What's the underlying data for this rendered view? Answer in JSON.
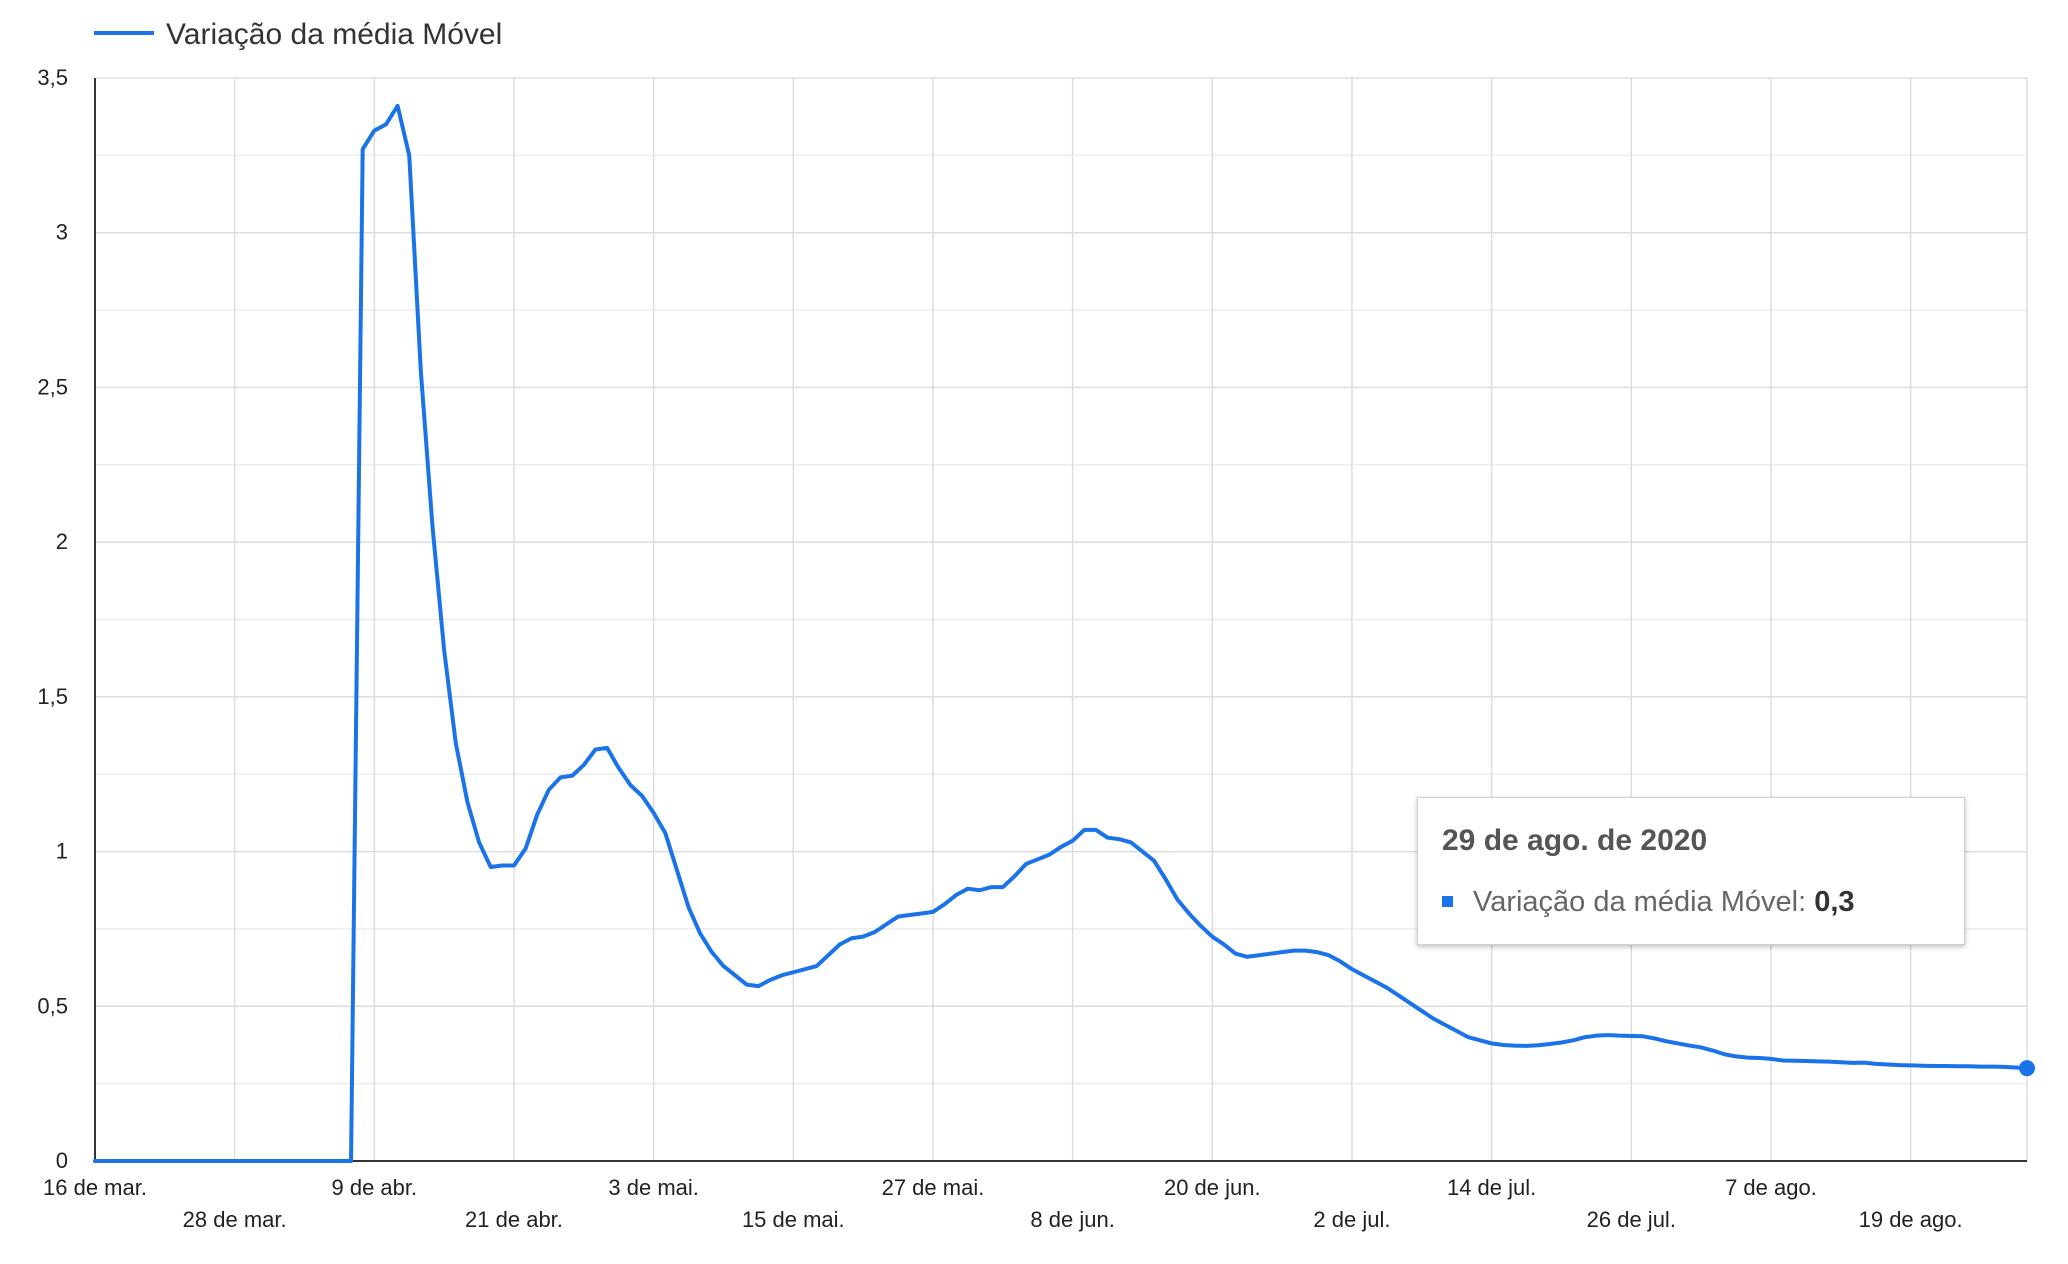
{
  "chart_data": {
    "type": "line",
    "legend": {
      "position": "top-left",
      "label": "Variação da média Móvel"
    },
    "series": [
      {
        "name": "Variação da média Móvel",
        "color": "#1a73e8",
        "points": [
          [
            "2020-03-16",
            0
          ],
          [
            "2020-04-02",
            0
          ],
          [
            "2020-04-03",
            0
          ],
          [
            "2020-04-04",
            0
          ],
          [
            "2020-04-05",
            0
          ],
          [
            "2020-04-06",
            0
          ],
          [
            "2020-04-07",
            0
          ],
          [
            "2020-04-08",
            3.27
          ],
          [
            "2020-04-09",
            3.33
          ],
          [
            "2020-04-10",
            3.35
          ],
          [
            "2020-04-11",
            3.41
          ],
          [
            "2020-04-12",
            3.25
          ],
          [
            "2020-04-13",
            2.55
          ],
          [
            "2020-04-14",
            2.05
          ],
          [
            "2020-04-15",
            1.65
          ],
          [
            "2020-04-16",
            1.35
          ],
          [
            "2020-04-17",
            1.16
          ],
          [
            "2020-04-18",
            1.03
          ],
          [
            "2020-04-19",
            0.95
          ],
          [
            "2020-04-20",
            0.955
          ],
          [
            "2020-04-21",
            0.955
          ],
          [
            "2020-04-22",
            1.01
          ],
          [
            "2020-04-23",
            1.12
          ],
          [
            "2020-04-24",
            1.2
          ],
          [
            "2020-04-25",
            1.24
          ],
          [
            "2020-04-26",
            1.245
          ],
          [
            "2020-04-27",
            1.28
          ],
          [
            "2020-04-28",
            1.33
          ],
          [
            "2020-04-29",
            1.335
          ],
          [
            "2020-04-30",
            1.27
          ],
          [
            "2020-05-01",
            1.215
          ],
          [
            "2020-05-02",
            1.18
          ],
          [
            "2020-05-03",
            1.125
          ],
          [
            "2020-05-04",
            1.06
          ],
          [
            "2020-05-05",
            0.94
          ],
          [
            "2020-05-06",
            0.82
          ],
          [
            "2020-05-07",
            0.735
          ],
          [
            "2020-05-08",
            0.675
          ],
          [
            "2020-05-09",
            0.63
          ],
          [
            "2020-05-10",
            0.6
          ],
          [
            "2020-05-11",
            0.57
          ],
          [
            "2020-05-12",
            0.565
          ],
          [
            "2020-05-13",
            0.585
          ],
          [
            "2020-05-14",
            0.6
          ],
          [
            "2020-05-15",
            0.61
          ],
          [
            "2020-05-16",
            0.62
          ],
          [
            "2020-05-17",
            0.63
          ],
          [
            "2020-05-18",
            0.665
          ],
          [
            "2020-05-19",
            0.7
          ],
          [
            "2020-05-20",
            0.72
          ],
          [
            "2020-05-21",
            0.725
          ],
          [
            "2020-05-22",
            0.74
          ],
          [
            "2020-05-23",
            0.765
          ],
          [
            "2020-05-24",
            0.79
          ],
          [
            "2020-05-25",
            0.795
          ],
          [
            "2020-05-26",
            0.8
          ],
          [
            "2020-05-27",
            0.805
          ],
          [
            "2020-05-28",
            0.83
          ],
          [
            "2020-05-29",
            0.86
          ],
          [
            "2020-05-30",
            0.88
          ],
          [
            "2020-05-31",
            0.875
          ],
          [
            "2020-06-01",
            0.885
          ],
          [
            "2020-06-02",
            0.885
          ],
          [
            "2020-06-03",
            0.92
          ],
          [
            "2020-06-04",
            0.96
          ],
          [
            "2020-06-05",
            0.975
          ],
          [
            "2020-06-06",
            0.99
          ],
          [
            "2020-06-07",
            1.015
          ],
          [
            "2020-06-08",
            1.035
          ],
          [
            "2020-06-09",
            1.07
          ],
          [
            "2020-06-10",
            1.07
          ],
          [
            "2020-06-11",
            1.045
          ],
          [
            "2020-06-12",
            1.04
          ],
          [
            "2020-06-13",
            1.03
          ],
          [
            "2020-06-14",
            1.0
          ],
          [
            "2020-06-15",
            0.97
          ],
          [
            "2020-06-16",
            0.91
          ],
          [
            "2020-06-17",
            0.845
          ],
          [
            "2020-06-18",
            0.8
          ],
          [
            "2020-06-19",
            0.76
          ],
          [
            "2020-06-20",
            0.725
          ],
          [
            "2020-06-21",
            0.7
          ],
          [
            "2020-06-22",
            0.67
          ],
          [
            "2020-06-23",
            0.66
          ],
          [
            "2020-06-24",
            0.665
          ],
          [
            "2020-06-25",
            0.67
          ],
          [
            "2020-06-26",
            0.675
          ],
          [
            "2020-06-27",
            0.68
          ],
          [
            "2020-06-28",
            0.68
          ],
          [
            "2020-06-29",
            0.675
          ],
          [
            "2020-06-30",
            0.665
          ],
          [
            "2020-07-01",
            0.645
          ],
          [
            "2020-07-02",
            0.62
          ],
          [
            "2020-07-03",
            0.6
          ],
          [
            "2020-07-04",
            0.58
          ],
          [
            "2020-07-05",
            0.56
          ],
          [
            "2020-07-06",
            0.535
          ],
          [
            "2020-07-07",
            0.51
          ],
          [
            "2020-07-08",
            0.485
          ],
          [
            "2020-07-09",
            0.46
          ],
          [
            "2020-07-10",
            0.44
          ],
          [
            "2020-07-11",
            0.42
          ],
          [
            "2020-07-12",
            0.4
          ],
          [
            "2020-07-13",
            0.39
          ],
          [
            "2020-07-14",
            0.38
          ],
          [
            "2020-07-15",
            0.375
          ],
          [
            "2020-07-16",
            0.373
          ],
          [
            "2020-07-17",
            0.372
          ],
          [
            "2020-07-18",
            0.374
          ],
          [
            "2020-07-19",
            0.378
          ],
          [
            "2020-07-20",
            0.383
          ],
          [
            "2020-07-21",
            0.39
          ],
          [
            "2020-07-22",
            0.4
          ],
          [
            "2020-07-23",
            0.405
          ],
          [
            "2020-07-24",
            0.407
          ],
          [
            "2020-07-25",
            0.405
          ],
          [
            "2020-07-26",
            0.404
          ],
          [
            "2020-07-27",
            0.403
          ],
          [
            "2020-07-28",
            0.396
          ],
          [
            "2020-07-29",
            0.387
          ],
          [
            "2020-07-30",
            0.38
          ],
          [
            "2020-07-31",
            0.373
          ],
          [
            "2020-08-01",
            0.367
          ],
          [
            "2020-08-02",
            0.357
          ],
          [
            "2020-08-03",
            0.345
          ],
          [
            "2020-08-04",
            0.338
          ],
          [
            "2020-08-05",
            0.334
          ],
          [
            "2020-08-06",
            0.333
          ],
          [
            "2020-08-07",
            0.33
          ],
          [
            "2020-08-08",
            0.325
          ],
          [
            "2020-08-09",
            0.324
          ],
          [
            "2020-08-10",
            0.323
          ],
          [
            "2020-08-11",
            0.322
          ],
          [
            "2020-08-12",
            0.321
          ],
          [
            "2020-08-13",
            0.319
          ],
          [
            "2020-08-14",
            0.317
          ],
          [
            "2020-08-15",
            0.318
          ],
          [
            "2020-08-16",
            0.314
          ],
          [
            "2020-08-17",
            0.312
          ],
          [
            "2020-08-18",
            0.31
          ],
          [
            "2020-08-19",
            0.309
          ],
          [
            "2020-08-20",
            0.308
          ],
          [
            "2020-08-21",
            0.307
          ],
          [
            "2020-08-22",
            0.307
          ],
          [
            "2020-08-23",
            0.306
          ],
          [
            "2020-08-24",
            0.306
          ],
          [
            "2020-08-25",
            0.305
          ],
          [
            "2020-08-26",
            0.305
          ],
          [
            "2020-08-27",
            0.304
          ],
          [
            "2020-08-28",
            0.302
          ],
          [
            "2020-08-29",
            0.3
          ]
        ]
      }
    ],
    "xlim": [
      "2020-03-16",
      "2020-08-29"
    ],
    "x_ticks": [
      {
        "date": "2020-03-16",
        "label": "16 de mar.",
        "row": 1
      },
      {
        "date": "2020-03-28",
        "label": "28 de mar.",
        "row": 2
      },
      {
        "date": "2020-04-09",
        "label": "9 de abr.",
        "row": 1
      },
      {
        "date": "2020-04-21",
        "label": "21 de abr.",
        "row": 2
      },
      {
        "date": "2020-05-03",
        "label": "3 de mai.",
        "row": 1
      },
      {
        "date": "2020-05-15",
        "label": "15 de mai.",
        "row": 2
      },
      {
        "date": "2020-05-27",
        "label": "27 de mai.",
        "row": 1
      },
      {
        "date": "2020-06-08",
        "label": "8 de jun.",
        "row": 2
      },
      {
        "date": "2020-06-20",
        "label": "20 de jun.",
        "row": 1
      },
      {
        "date": "2020-07-02",
        "label": "2 de jul.",
        "row": 2
      },
      {
        "date": "2020-07-14",
        "label": "14 de jul.",
        "row": 1
      },
      {
        "date": "2020-07-26",
        "label": "26 de jul.",
        "row": 2
      },
      {
        "date": "2020-08-07",
        "label": "7 de ago.",
        "row": 1
      },
      {
        "date": "2020-08-19",
        "label": "19 de ago.",
        "row": 2
      }
    ],
    "ylim": [
      0,
      3.5
    ],
    "y_ticks": [
      {
        "value": 0,
        "label": "0"
      },
      {
        "value": 0.5,
        "label": "0,5"
      },
      {
        "value": 1,
        "label": "1"
      },
      {
        "value": 1.5,
        "label": "1,5"
      },
      {
        "value": 2,
        "label": "2"
      },
      {
        "value": 2.5,
        "label": "2,5"
      },
      {
        "value": 3,
        "label": "3"
      },
      {
        "value": 3.5,
        "label": "3,5"
      }
    ],
    "grid": true,
    "highlighted_point": [
      "2020-08-29",
      0.3
    ],
    "tooltip": {
      "title": "29 de ago. de 2020",
      "series_label": "Variação da média Móvel:",
      "value": "0,3"
    }
  }
}
